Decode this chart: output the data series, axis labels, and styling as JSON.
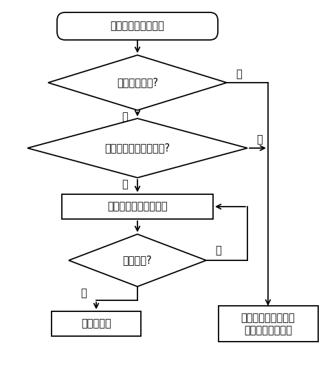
{
  "bg_color": "#ffffff",
  "line_color": "#000000",
  "text_color": "#000000",
  "font_size": 10.5,
  "figsize": [
    4.86,
    5.43
  ],
  "dpi": 100,
  "nodes": {
    "start_text": "收到启动发动机信号",
    "d1_text": "加热线路正常?",
    "d2_text": "电源电压高于预定电压?",
    "r1_text": "按照加热策略进行加热",
    "d3_text": "加热完毕?",
    "r2_text": "启动发动机",
    "r3_line1": "按照发动机冷启动减",
    "r3_line2": "排策略启动发动机",
    "yes": "是",
    "no": "否"
  }
}
